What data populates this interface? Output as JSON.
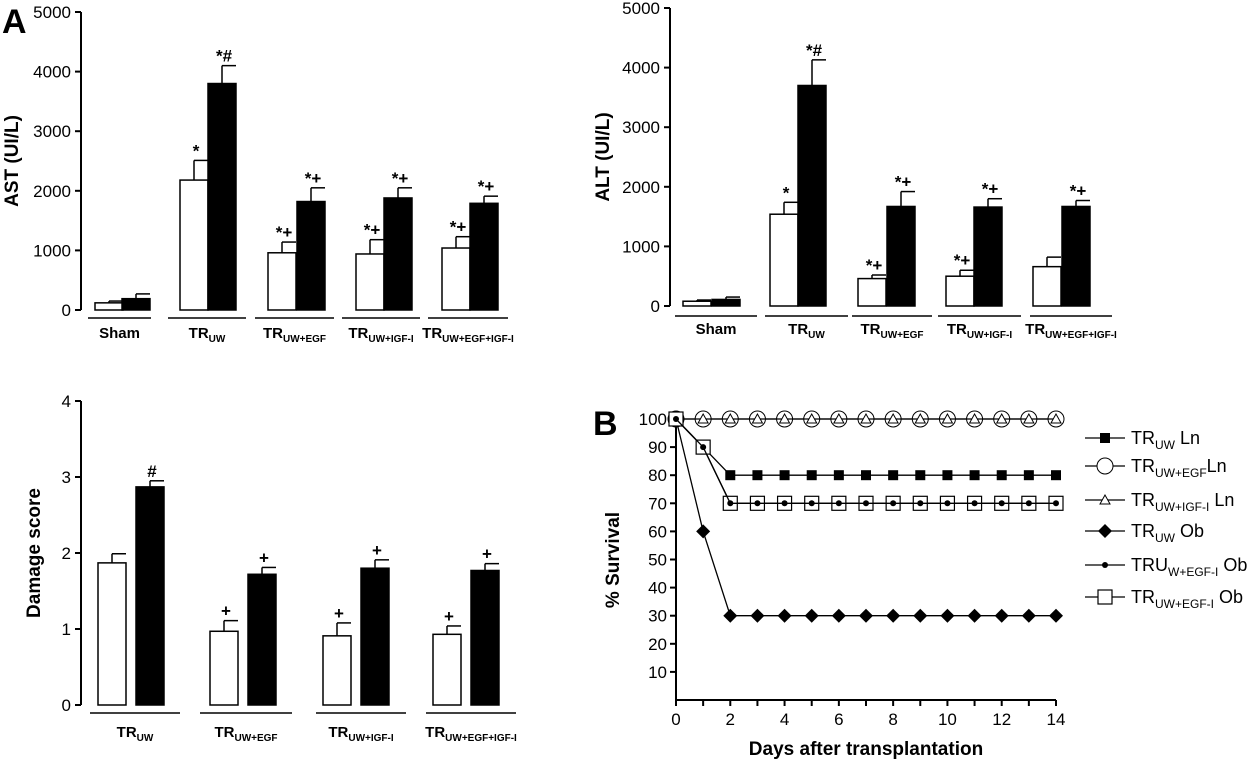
{
  "panel_labels": {
    "a": "A",
    "b": "B"
  },
  "chart_data": [
    {
      "id": "ast",
      "type": "bar",
      "ylabel": "AST (UI/L)",
      "ylim": [
        0,
        5000
      ],
      "yticks": [
        0,
        1000,
        2000,
        3000,
        4000,
        5000
      ],
      "categories": [
        {
          "main": "Sham",
          "sub": ""
        },
        {
          "main": "TR",
          "sub": "UW"
        },
        {
          "main": "TR",
          "sub": "UW+EGF"
        },
        {
          "main": "TR",
          "sub": "UW+IGF-I"
        },
        {
          "main": "TR",
          "sub": "UW+EGF+IGF-I"
        }
      ],
      "series": [
        {
          "fill": "#ffffff",
          "values": [
            120,
            2180,
            960,
            940,
            1040
          ],
          "errors": [
            30,
            330,
            180,
            240,
            190
          ],
          "marks": [
            "",
            "*",
            "*+",
            "*+",
            "*+"
          ]
        },
        {
          "fill": "#000000",
          "values": [
            190,
            3800,
            1820,
            1880,
            1790
          ],
          "errors": [
            80,
            300,
            230,
            170,
            120
          ],
          "marks": [
            "",
            "*#",
            "*+",
            "*+",
            "*+"
          ]
        }
      ],
      "legend": "none",
      "grid": false
    },
    {
      "id": "alt",
      "type": "bar",
      "ylabel": "ALT (UI/L)",
      "ylim": [
        0,
        5000
      ],
      "yticks": [
        0,
        1000,
        2000,
        3000,
        4000,
        5000
      ],
      "categories": [
        {
          "main": "Sham",
          "sub": ""
        },
        {
          "main": "TR",
          "sub": "UW"
        },
        {
          "main": "TR",
          "sub": "UW+EGF"
        },
        {
          "main": "TR",
          "sub": "UW+IGF-I"
        },
        {
          "main": "TR",
          "sub": "UW+EGF+IGF-I"
        }
      ],
      "series": [
        {
          "fill": "#ffffff",
          "values": [
            80,
            1540,
            460,
            500,
            660
          ],
          "errors": [
            20,
            200,
            60,
            100,
            160
          ],
          "marks": [
            "",
            "*",
            "*+",
            "*+",
            ""
          ]
        },
        {
          "fill": "#000000",
          "values": [
            110,
            3700,
            1670,
            1660,
            1670
          ],
          "errors": [
            40,
            430,
            250,
            140,
            100
          ],
          "marks": [
            "",
            "*#",
            "*+",
            "*+",
            "*+"
          ]
        }
      ],
      "legend": "none",
      "grid": false
    },
    {
      "id": "damage",
      "type": "bar",
      "ylabel": "Damage score",
      "ylim": [
        0,
        4
      ],
      "yticks": [
        0,
        1,
        2,
        3,
        4
      ],
      "categories": [
        {
          "main": "TR",
          "sub": "UW"
        },
        {
          "main": "TR",
          "sub": "UW+EGF"
        },
        {
          "main": "TR",
          "sub": "UW+IGF-I"
        },
        {
          "main": "TR",
          "sub": "UW+EGF+IGF-I"
        }
      ],
      "series": [
        {
          "fill": "#ffffff",
          "values": [
            1.87,
            0.97,
            0.91,
            0.93
          ],
          "errors": [
            0.12,
            0.14,
            0.17,
            0.11
          ],
          "marks": [
            "",
            "+",
            "+",
            "+"
          ]
        },
        {
          "fill": "#000000",
          "values": [
            2.87,
            1.72,
            1.8,
            1.77
          ],
          "errors": [
            0.08,
            0.09,
            0.11,
            0.09
          ],
          "marks": [
            "#",
            "+",
            "+",
            "+"
          ]
        }
      ],
      "legend": "none",
      "grid": false
    },
    {
      "id": "survival",
      "type": "line",
      "xlabel": "Days after transplantation",
      "ylabel": "% Survival",
      "xlim": [
        0,
        14
      ],
      "ylim": [
        0,
        100
      ],
      "xticks": [
        0,
        2,
        4,
        6,
        8,
        10,
        12,
        14
      ],
      "yticks": [
        10,
        20,
        30,
        40,
        50,
        60,
        70,
        80,
        90,
        100
      ],
      "x": [
        0,
        1,
        2,
        3,
        4,
        5,
        6,
        7,
        8,
        9,
        10,
        11,
        12,
        13,
        14
      ],
      "series": [
        {
          "name_main": "TR",
          "name_sub": "UW",
          "name_tail": " Ln",
          "marker": "square-filled",
          "values": [
            100,
            90,
            80,
            80,
            80,
            80,
            80,
            80,
            80,
            80,
            80,
            80,
            80,
            80,
            80
          ]
        },
        {
          "name_main": "TR",
          "name_sub": "UW+EGF",
          "name_tail": "Ln",
          "marker": "circle-open",
          "values": [
            100,
            100,
            100,
            100,
            100,
            100,
            100,
            100,
            100,
            100,
            100,
            100,
            100,
            100,
            100
          ]
        },
        {
          "name_main": "TR",
          "name_sub": "UW+IGF-I",
          "name_tail": " Ln",
          "marker": "triangle-open",
          "values": [
            100,
            100,
            100,
            100,
            100,
            100,
            100,
            100,
            100,
            100,
            100,
            100,
            100,
            100,
            100
          ]
        },
        {
          "name_main": "TR",
          "name_sub": "UW",
          "name_tail": " Ob",
          "marker": "diamond-filled",
          "values": [
            100,
            60,
            30,
            30,
            30,
            30,
            30,
            30,
            30,
            30,
            30,
            30,
            30,
            30,
            30
          ]
        },
        {
          "name_main": "TRU",
          "name_sub": "W+EGF-I",
          "name_tail": " Ob",
          "marker": "dot-small",
          "values": [
            100,
            90,
            70,
            70,
            70,
            70,
            70,
            70,
            70,
            70,
            70,
            70,
            70,
            70,
            70
          ]
        },
        {
          "name_main": "TR",
          "name_sub": "UW+EGF-I",
          "name_tail": " Ob",
          "marker": "square-open",
          "values": [
            100,
            90,
            70,
            70,
            70,
            70,
            70,
            70,
            70,
            70,
            70,
            70,
            70,
            70,
            70
          ]
        }
      ],
      "legend": "right",
      "grid": false
    }
  ]
}
